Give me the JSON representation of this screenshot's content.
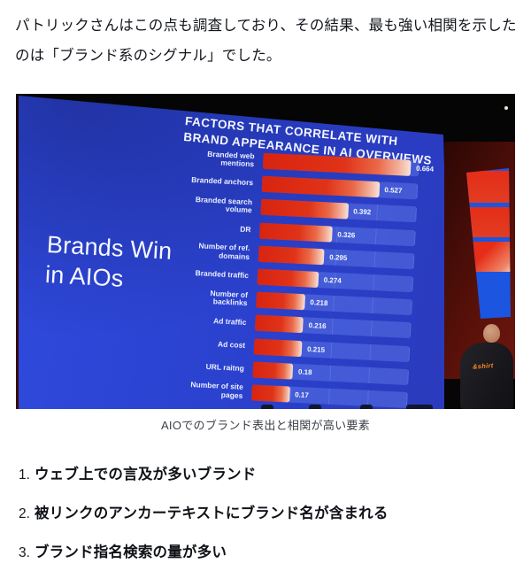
{
  "paragraph": {
    "line1": "パトリックさんはこの点も調査しており、その結果、最も強い相関を示した",
    "line2": "のは「ブランド系のシグナル」でした。"
  },
  "photo": {
    "slide": {
      "title_line1": "FACTORS THAT CORRELATE WITH",
      "title_line2": "BRAND APPEARANCE IN AI OVERVIEWS",
      "headline_line1": "Brands Win",
      "headline_line2": "in AIOs"
    },
    "chart_data": {
      "type": "bar",
      "orientation": "horizontal",
      "title": "FACTORS THAT CORRELATE WITH BRAND APPEARANCE IN AI OVERVIEWS",
      "categories": [
        "Branded web mentions",
        "Branded anchors",
        "Branded search volume",
        "DR",
        "Number of ref. domains",
        "Branded traffic",
        "Number of backlinks",
        "Ad traffic",
        "Ad cost",
        "URL raitng",
        "Number of site pages"
      ],
      "values": [
        0.664,
        0.527,
        0.392,
        0.326,
        0.295,
        0.274,
        0.218,
        0.216,
        0.215,
        0.18,
        0.17
      ],
      "xlim": [
        0,
        0.7
      ],
      "grid": "faint vertical gridlines",
      "bar_color": "#e03318",
      "background_color": "#2b42cf"
    },
    "speaker_shirt_text": "&shirt"
  },
  "caption": "AIOでのブランド表出と相関が高い要素",
  "list": {
    "items": [
      {
        "num": "1.",
        "text": "ウェブ上での言及が多いブランド"
      },
      {
        "num": "2.",
        "text": "被リンクのアンカーテキストにブランド名が含まれる"
      },
      {
        "num": "3.",
        "text": "ブランド指名検索の量が多い"
      }
    ]
  },
  "colors": {
    "slide_blue": "#2b42cf",
    "bar_red": "#e03318",
    "wall_maroon": "#551009",
    "text_white": "#f4f6ff",
    "shirt_logo_orange": "#ff8a1e"
  }
}
